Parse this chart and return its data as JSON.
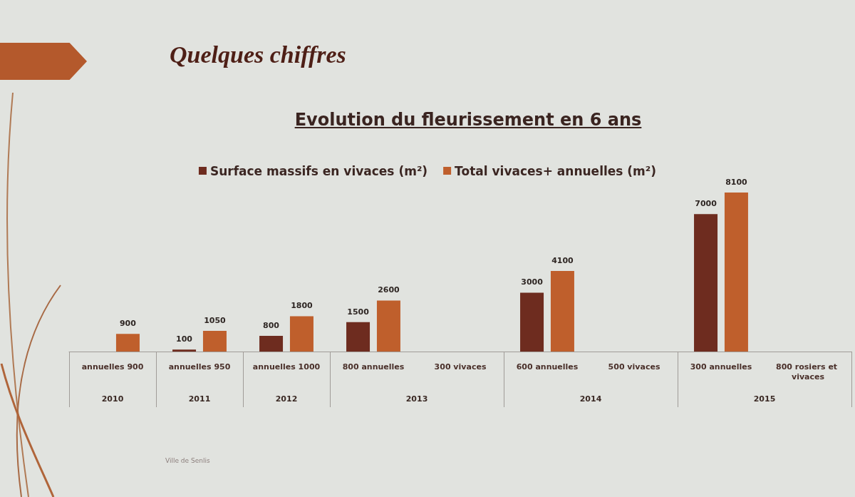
{
  "chart_data": {
    "type": "bar",
    "title": "Quelques chiffres",
    "subtitle": "Evolution du fleurissement en 6 ans",
    "categories": [
      "annuelles 900",
      "annuelles 950",
      "annuelles 1000",
      "800 annuelles",
      "300 vivaces",
      "600 annuelles",
      "500 vivaces",
      "300 annuelles",
      "800 rosiers et vivaces"
    ],
    "series": [
      {
        "name": "Surface massifs en vivaces (m²)",
        "color": "#6e2c1f",
        "values": [
          null,
          100,
          800,
          1500,
          null,
          3000,
          null,
          7000,
          null
        ]
      },
      {
        "name": "Total vivaces+ annuelles (m²)",
        "color": "#bf5f2c",
        "values": [
          900,
          1050,
          1800,
          2600,
          null,
          4100,
          null,
          8100,
          null
        ]
      }
    ],
    "data_labels": true,
    "legend": "top",
    "annotations": [
      "2010",
      "2011",
      "2012",
      "2013",
      "2014",
      "2015",
      "Ville de Senlis"
    ]
  }
}
